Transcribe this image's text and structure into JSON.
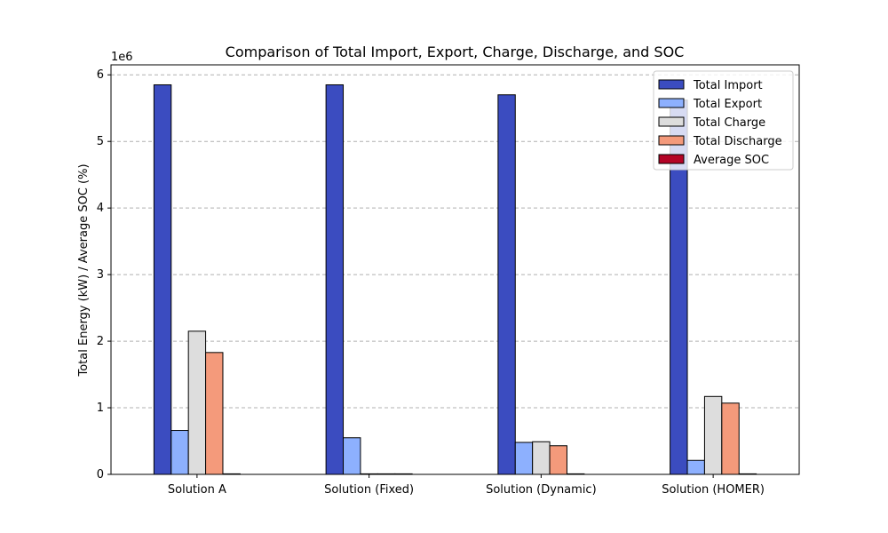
{
  "chart_data": {
    "type": "bar",
    "title": "Comparison of Total Import, Export, Charge, Discharge, and SOC",
    "xlabel": "",
    "ylabel": "Total Energy (kW) / Average SOC (%)",
    "y_offset_label": "1e6",
    "ylim": [
      0,
      6.15
    ],
    "yticks": [
      "0",
      "1",
      "2",
      "3",
      "4",
      "5",
      "6"
    ],
    "grid": "y-dashed",
    "legend_position": "top-right",
    "categories": [
      "Solution A",
      "Solution (Fixed)",
      "Solution (Dynamic)",
      "Solution (HOMER)"
    ],
    "series": [
      {
        "name": "Total Import",
        "color": "#3b4cc0",
        "values": [
          5.85,
          5.85,
          5.7,
          5.62
        ]
      },
      {
        "name": "Total Export",
        "color": "#8db0fe",
        "values": [
          0.66,
          0.55,
          0.48,
          0.21
        ]
      },
      {
        "name": "Total Charge",
        "color": "#dddddd",
        "values": [
          2.15,
          0.0,
          0.49,
          1.17
        ]
      },
      {
        "name": "Total Discharge",
        "color": "#f49a7b",
        "values": [
          1.83,
          0.0,
          0.43,
          1.07
        ]
      },
      {
        "name": "Average SOC",
        "color": "#b40426",
        "values": [
          0.0,
          0.0,
          0.0,
          0.0
        ]
      }
    ]
  }
}
